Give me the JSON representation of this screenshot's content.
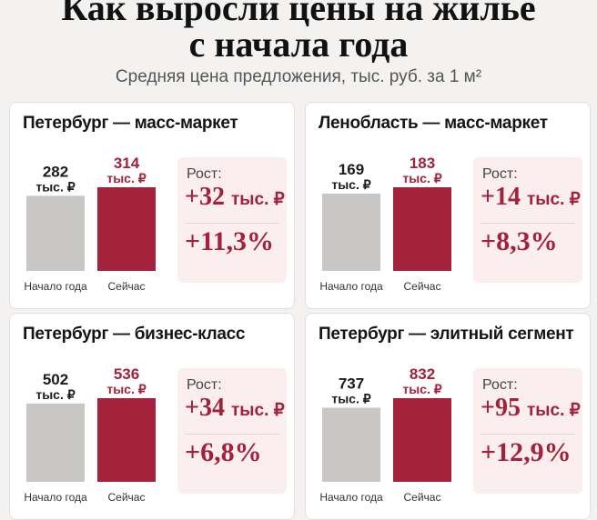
{
  "header": {
    "title_line1": "Как выросли цены на жилье",
    "title_line2": "с начала года",
    "subtitle": "Средняя цена предложения, тыс. руб. за 1 м²"
  },
  "colors": {
    "start_bar": "#c8c7c6",
    "now_bar": "#a3213a",
    "accent": "#a3213a"
  },
  "chart_data": [
    {
      "type": "bar",
      "title": "Петербург — масс-маркет",
      "categories": [
        "Начало года",
        "Сейчас"
      ],
      "values": [
        282,
        314
      ],
      "value_labels": [
        "282",
        "314"
      ],
      "unit_label": "тыс. ₽",
      "growth_label": "Рост:",
      "growth_abs": "+32",
      "growth_unit": "тыс. ₽",
      "growth_pct": "+11,3%"
    },
    {
      "type": "bar",
      "title": "Ленобласть — масс-маркет",
      "categories": [
        "Начало года",
        "Сейчас"
      ],
      "values": [
        169,
        183
      ],
      "value_labels": [
        "169",
        "183"
      ],
      "unit_label": "тыс. ₽",
      "growth_label": "Рост:",
      "growth_abs": "+14",
      "growth_unit": "тыс. ₽",
      "growth_pct": "+8,3%"
    },
    {
      "type": "bar",
      "title": "Петербург — бизнес-класс",
      "categories": [
        "Начало года",
        "Сейчас"
      ],
      "values": [
        502,
        536
      ],
      "value_labels": [
        "502",
        "536"
      ],
      "unit_label": "тыс. ₽",
      "growth_label": "Рост:",
      "growth_abs": "+34",
      "growth_unit": "тыс. ₽",
      "growth_pct": "+6,8%"
    },
    {
      "type": "bar",
      "title": "Петербург — элитный сегмент",
      "categories": [
        "Начало года",
        "Сейчас"
      ],
      "values": [
        737,
        832
      ],
      "value_labels": [
        "737",
        "832"
      ],
      "unit_label": "тыс. ₽",
      "growth_label": "Рост:",
      "growth_abs": "+95",
      "growth_unit": "тыс. ₽",
      "growth_pct": "+12,9%"
    }
  ]
}
